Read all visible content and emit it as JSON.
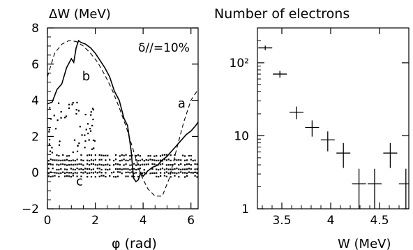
{
  "colors": {
    "foreground": "#000000",
    "background": "#ffffff"
  },
  "chart_data": [
    {
      "type": "line",
      "ylabel": "ΔW (MeV)",
      "xlabel": "φ (rad)",
      "xlim": [
        0,
        6.3
      ],
      "ylim": [
        -2,
        8
      ],
      "x_ticks": [
        0,
        2,
        4,
        6
      ],
      "y_ticks": [
        -2,
        0,
        2,
        4,
        6,
        8
      ],
      "annotation": "δ//=10%",
      "curve_labels": [
        {
          "text": "a",
          "x": 5.45,
          "y": 3.6
        },
        {
          "text": "b",
          "x": 1.45,
          "y": 5.1
        },
        {
          "text": "c",
          "x": 1.2,
          "y": -0.7
        }
      ],
      "series": [
        {
          "label": "a",
          "style": "dashed",
          "x": [
            0.0,
            0.3,
            0.6,
            0.9,
            1.2,
            1.5,
            1.8,
            2.1,
            2.4,
            2.7,
            3.0,
            3.3,
            3.6,
            3.9,
            4.2,
            4.5,
            4.8,
            5.1,
            5.4,
            5.7,
            6.0,
            6.3
          ],
          "y": [
            5.3,
            6.6,
            7.1,
            7.3,
            7.25,
            7.0,
            6.6,
            6.1,
            5.4,
            4.6,
            3.6,
            2.5,
            1.2,
            -0.1,
            -0.9,
            -1.3,
            -1.3,
            -0.3,
            1.3,
            2.8,
            4.0,
            4.6
          ]
        },
        {
          "label": "b",
          "style": "solid",
          "x": [
            0.0,
            0.2,
            0.4,
            0.6,
            0.8,
            1.0,
            1.1,
            1.2,
            1.3,
            1.4,
            1.6,
            1.8,
            2.0,
            2.2,
            2.4,
            2.6,
            2.8,
            3.0,
            3.2,
            3.35,
            3.5,
            3.6,
            3.7,
            3.8,
            3.9,
            4.0,
            4.2,
            4.4,
            4.6,
            4.8,
            5.0,
            5.2,
            5.4,
            5.6,
            5.8,
            6.0,
            6.2,
            6.3
          ],
          "y": [
            3.8,
            3.9,
            4.6,
            4.9,
            5.8,
            6.3,
            6.1,
            6.9,
            7.3,
            7.2,
            7.1,
            6.9,
            6.6,
            6.2,
            5.8,
            5.3,
            4.5,
            4.0,
            3.0,
            2.6,
            1.2,
            -0.3,
            -0.5,
            -0.4,
            0.0,
            -0.2,
            0.1,
            0.3,
            0.4,
            0.7,
            0.9,
            1.2,
            1.5,
            1.8,
            2.1,
            2.3,
            2.6,
            2.8
          ]
        }
      ]
    },
    {
      "type": "scatter",
      "title": "Number of electrons",
      "xlabel": "W (MeV)",
      "xlim": [
        3.25,
        4.8
      ],
      "ylim": [
        1,
        300
      ],
      "y_scale": "log",
      "x_ticks": [
        3.5,
        4.0,
        4.5
      ],
      "y_tick_labels": [
        "1",
        "10",
        "10²"
      ],
      "error_bars": "crosses",
      "points": [
        {
          "x": 3.33,
          "y": 160
        },
        {
          "x": 3.48,
          "y": 70
        },
        {
          "x": 3.65,
          "y": 21
        },
        {
          "x": 3.81,
          "y": 13
        },
        {
          "x": 3.97,
          "y": 8.8
        },
        {
          "x": 4.13,
          "y": 5.8
        },
        {
          "x": 4.29,
          "y": 2.2
        },
        {
          "x": 4.45,
          "y": 2.2
        },
        {
          "x": 4.61,
          "y": 5.8
        },
        {
          "x": 4.77,
          "y": 2.2
        }
      ]
    }
  ]
}
